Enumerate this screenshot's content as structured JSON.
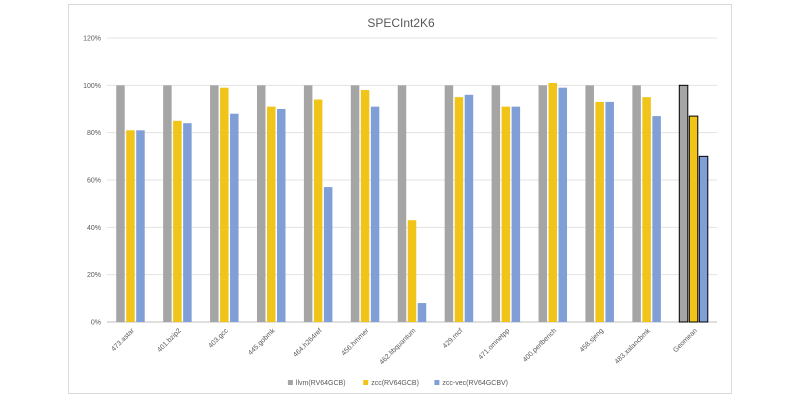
{
  "chart_data": {
    "type": "bar",
    "title": "SPECInt2K6",
    "xlabel": "",
    "ylabel": "",
    "ylim": [
      0,
      120
    ],
    "yticks": [
      "0%",
      "20%",
      "40%",
      "60%",
      "80%",
      "100%",
      "120%"
    ],
    "grid": true,
    "legend_position": "bottom",
    "categories": [
      "473.astar",
      "401.bzip2",
      "403.gcc",
      "445.gobmk",
      "464.h264ref",
      "456.hmmer",
      "462.libquantum",
      "429.mcf",
      "471.omnetpp",
      "400.perlbench",
      "458.sjeng",
      "483.xalancbmk",
      "Geomean"
    ],
    "series": [
      {
        "name": "llvm(RV64GCB)",
        "color": "#a5a5a5",
        "values": [
          100,
          100,
          100,
          100,
          100,
          100,
          100,
          100,
          100,
          100,
          100,
          100,
          100
        ]
      },
      {
        "name": "zcc(RV64GCB)",
        "color": "#f0c419",
        "values": [
          81,
          85,
          99,
          91,
          94,
          98,
          43,
          95,
          91,
          101,
          93,
          95,
          87
        ]
      },
      {
        "name": "zcc-vec(RV64GCBV)",
        "color": "#7f9fd6",
        "values": [
          81,
          84,
          88,
          90,
          57,
          91,
          8,
          96,
          91,
          99,
          93,
          87,
          70
        ]
      }
    ],
    "highlighted_category": "Geomean"
  }
}
